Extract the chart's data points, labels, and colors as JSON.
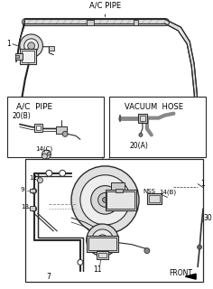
{
  "bg": "white",
  "lc": "#2a2a2a",
  "gray": "#888888",
  "lgray": "#bbbbbb",
  "title": "A/C PIPE",
  "label_ac_pipe": "A/C  PIPE",
  "label_vac": "VACUUM  HOSE",
  "label_20b": "20(B)",
  "label_20a": "20(A)",
  "label_14c": "14(C)",
  "label_14b": "14(B)",
  "label_nss": "NSS",
  "label_front": "FRONT",
  "label_1": "1",
  "label_7": "7",
  "label_9": "9",
  "label_11": "11",
  "label_12": "12",
  "label_13": "13",
  "label_30": "30"
}
